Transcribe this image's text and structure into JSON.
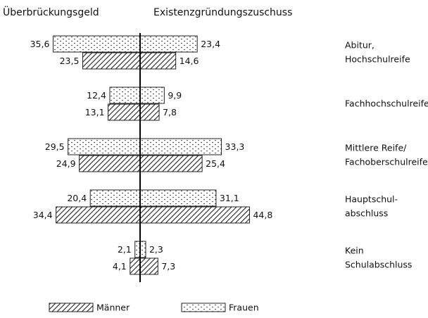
{
  "chart_data": {
    "type": "butterfly",
    "left_title": "Überbrückungsgeld",
    "right_title": "Existenzgründungszuschuss",
    "categories": [
      [
        "Abitur,",
        "Hochschulreife"
      ],
      [
        "Fachhochschulreife"
      ],
      [
        "Mittlere Reife/",
        "Fachoberschulreife"
      ],
      [
        "Hauptschul-",
        "abschluss"
      ],
      [
        "Kein",
        "Schulabschluss"
      ]
    ],
    "series": [
      {
        "name": "Frauen",
        "pattern": "dots",
        "values_left": [
          35.6,
          12.4,
          29.5,
          20.4,
          2.1
        ],
        "value_labels_left": [
          "35,6",
          "12,4",
          "29,5",
          "20,4",
          "2,1"
        ],
        "values_right": [
          23.4,
          9.9,
          33.3,
          31.1,
          2.3
        ],
        "value_labels_right": [
          "23,4",
          "9,9",
          "33,3",
          "31,1",
          "2,3"
        ]
      },
      {
        "name": "Männer",
        "pattern": "hatch",
        "values_left": [
          23.5,
          13.1,
          24.9,
          34.4,
          4.1
        ],
        "value_labels_left": [
          "23,5",
          "13,1",
          "24,9",
          "34,4",
          "4,1"
        ],
        "values_right": [
          14.6,
          7.8,
          25.4,
          44.8,
          7.3
        ],
        "value_labels_right": [
          "14,6",
          "7,8",
          "25,4",
          "44,8",
          "7,3"
        ]
      }
    ]
  }
}
